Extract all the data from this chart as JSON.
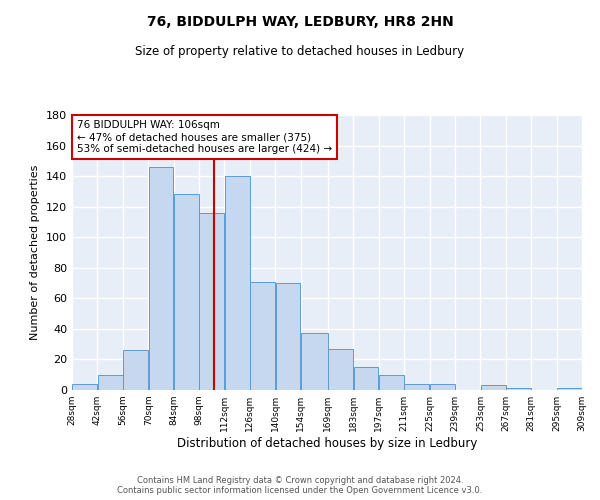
{
  "title1": "76, BIDDULPH WAY, LEDBURY, HR8 2HN",
  "title2": "Size of property relative to detached houses in Ledbury",
  "xlabel": "Distribution of detached houses by size in Ledbury",
  "ylabel": "Number of detached properties",
  "bin_labels": [
    "28sqm",
    "42sqm",
    "56sqm",
    "70sqm",
    "84sqm",
    "98sqm",
    "112sqm",
    "126sqm",
    "140sqm",
    "154sqm",
    "169sqm",
    "183sqm",
    "197sqm",
    "211sqm",
    "225sqm",
    "239sqm",
    "253sqm",
    "267sqm",
    "281sqm",
    "295sqm",
    "309sqm"
  ],
  "bar_heights": [
    4,
    10,
    26,
    146,
    128,
    116,
    140,
    71,
    70,
    37,
    27,
    15,
    10,
    4,
    4,
    0,
    3,
    1,
    0,
    1
  ],
  "bin_edges": [
    28,
    42,
    56,
    70,
    84,
    98,
    112,
    126,
    140,
    154,
    169,
    183,
    197,
    211,
    225,
    239,
    253,
    267,
    281,
    295,
    309
  ],
  "bar_color": "#c5d8f0",
  "bar_edge_color": "#5b9bd5",
  "bg_color": "#e8eef7",
  "grid_color": "#ffffff",
  "vline_x": 106,
  "vline_color": "#cc0000",
  "annotation_text1": "76 BIDDULPH WAY: 106sqm",
  "annotation_text2": "← 47% of detached houses are smaller (375)",
  "annotation_text3": "53% of semi-detached houses are larger (424) →",
  "annot_box_color": "#ffffff",
  "annot_box_edge": "#cc0000",
  "footer1": "Contains HM Land Registry data © Crown copyright and database right 2024.",
  "footer2": "Contains public sector information licensed under the Open Government Licence v3.0.",
  "ylim": [
    0,
    180
  ],
  "yticks": [
    0,
    20,
    40,
    60,
    80,
    100,
    120,
    140,
    160,
    180
  ]
}
